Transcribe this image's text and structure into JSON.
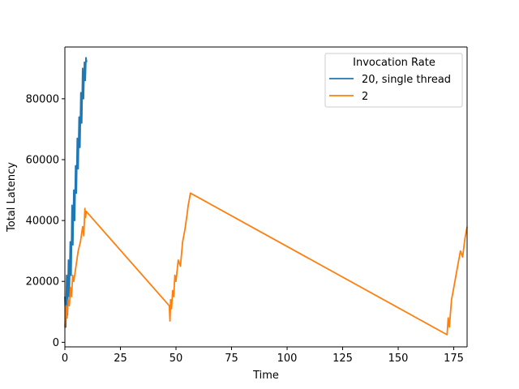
{
  "chart_data": {
    "type": "line",
    "title": "",
    "xlabel": "Time",
    "ylabel": "Total Latency",
    "xlim": [
      0,
      181
    ],
    "ylim": [
      -1500,
      97000
    ],
    "xticks": [
      0,
      25,
      50,
      75,
      100,
      125,
      150,
      175
    ],
    "yticks": [
      0,
      20000,
      40000,
      60000,
      80000
    ],
    "grid": false,
    "legend": {
      "title": "Invocation Rate",
      "position": "top-right"
    },
    "series": [
      {
        "name": "20, single thread",
        "color": "#1f77b4",
        "x": [
          0,
          0.4,
          0.8,
          1.2,
          1.6,
          2.0,
          2.4,
          2.8,
          3.2,
          3.6,
          4.0,
          4.4,
          4.8,
          5.2,
          5.6,
          6.0,
          6.4,
          6.8,
          7.2,
          7.6,
          8.0,
          8.4,
          8.8,
          9.2,
          9.5,
          9.8
        ],
        "y": [
          15000,
          5000,
          22000,
          9000,
          27000,
          15000,
          33000,
          22000,
          45000,
          32000,
          50000,
          40000,
          58000,
          49000,
          67000,
          57000,
          74000,
          64000,
          82000,
          72000,
          90000,
          80000,
          92000,
          86000,
          93500,
          92000
        ]
      },
      {
        "name": "2",
        "color": "#ff7f0e",
        "x": [
          0,
          0.5,
          1.0,
          1.5,
          2.0,
          2.5,
          3.0,
          3.5,
          4.0,
          5.0,
          6.0,
          7.0,
          8.0,
          8.5,
          9.0,
          9.3,
          9.6,
          47.0,
          47.3,
          47.6,
          48.0,
          48.5,
          49.0,
          49.5,
          50.0,
          51.0,
          52.0,
          53.0,
          54.0,
          55.0,
          55.5,
          56.0,
          56.5,
          172.0,
          172.5,
          173.0,
          174.0,
          175.0,
          176.0,
          177.0,
          178.0,
          179.0,
          180.0,
          181.0
        ],
        "y": [
          5000,
          12000,
          8000,
          14000,
          12000,
          18000,
          15000,
          22000,
          20000,
          25000,
          30000,
          33000,
          38000,
          35000,
          44000,
          41000,
          43000,
          12000,
          7000,
          14000,
          11000,
          17000,
          15000,
          22000,
          20000,
          27000,
          25000,
          33000,
          37000,
          42000,
          45000,
          47000,
          49000,
          2500,
          8000,
          5000,
          14000,
          18000,
          22000,
          26000,
          30000,
          28000,
          34000,
          38000
        ]
      }
    ]
  }
}
